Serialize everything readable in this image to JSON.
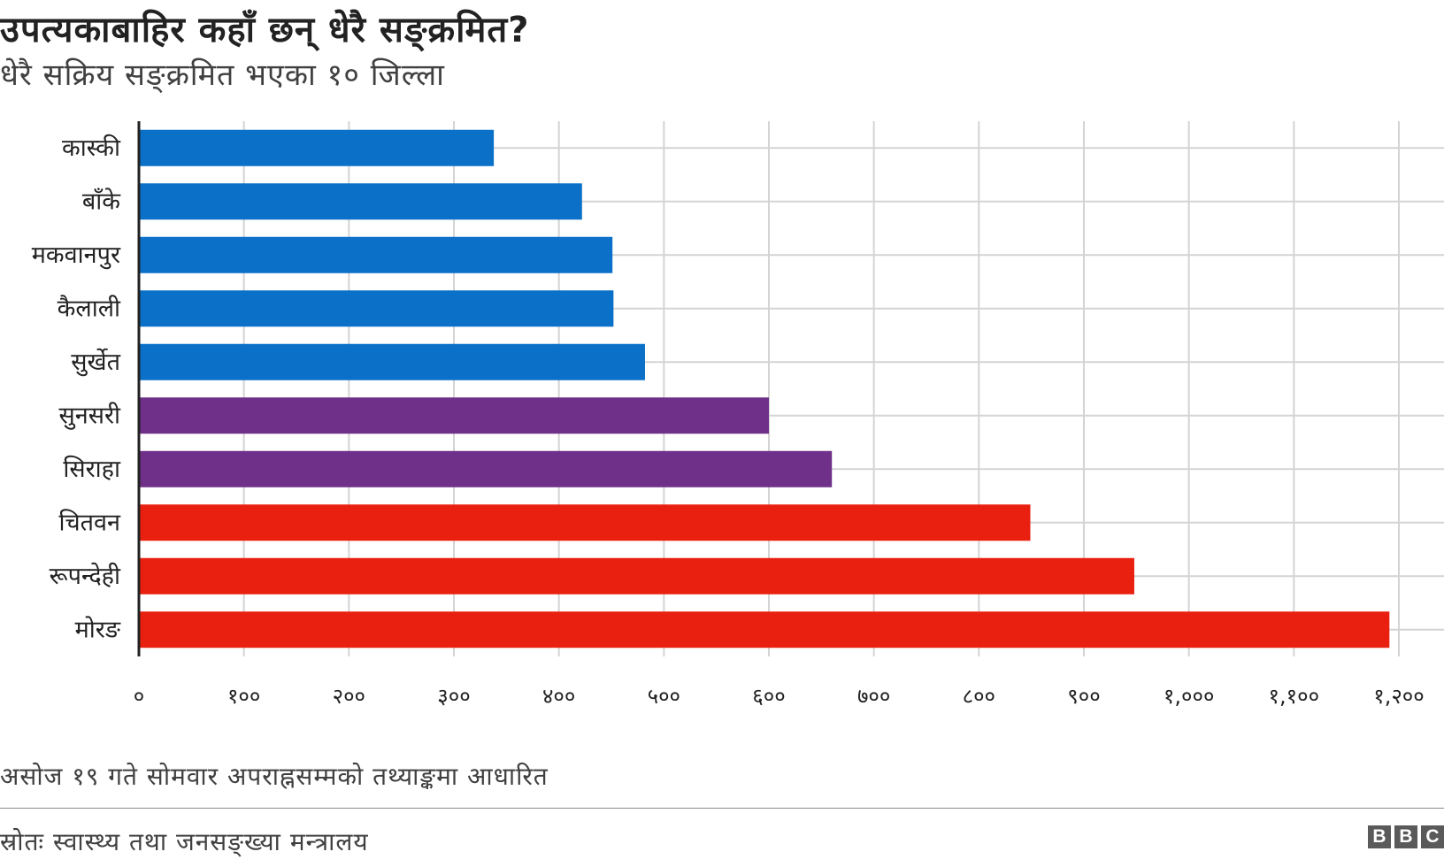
{
  "header": {
    "title": "उपत्यकाबाहिर कहाँ छन् धेरै सङ्क्रमित?",
    "subtitle": "धेरै सक्रिय सङ्क्रमित भएका १० जिल्ला"
  },
  "chart_data": {
    "type": "bar",
    "orientation": "horizontal",
    "categories": [
      "कास्की",
      "बाँके",
      "मकवानपुर",
      "कैलाली",
      "सुर्खेत",
      "सुनसरी",
      "सिराहा",
      "चितवन",
      "रूपन्देही",
      "मोरङ"
    ],
    "values": [
      338,
      422,
      451,
      452,
      482,
      600,
      660,
      849,
      948,
      1191
    ],
    "bar_colors": [
      "#0a70c8",
      "#0a70c8",
      "#0a70c8",
      "#0a70c8",
      "#0a70c8",
      "#6e3088",
      "#6e3088",
      "#e9200f",
      "#e9200f",
      "#e9200f"
    ],
    "xlim": [
      0,
      1200
    ],
    "xticks": [
      0,
      100,
      200,
      300,
      400,
      500,
      600,
      700,
      800,
      900,
      1000,
      1100,
      1200
    ],
    "xtick_labels": [
      "०",
      "१००",
      "२००",
      "३००",
      "४००",
      "५००",
      "६००",
      "७००",
      "८००",
      "९००",
      "१,०००",
      "१,१००",
      "१,२००"
    ],
    "grid": true,
    "xlabel": "",
    "ylabel": "",
    "colors": {
      "grid": "#d4d4d4",
      "axis": "#222222",
      "text": "#222222"
    }
  },
  "footer": {
    "note": "असोज १९ गते सोमवार अपराह्नसम्मको तथ्याङ्कमा आधारित",
    "source": "स्रोतः स्वास्थ्य तथा जनसङ्ख्या मन्त्रालय",
    "logo_letters": [
      "B",
      "B",
      "C"
    ]
  }
}
